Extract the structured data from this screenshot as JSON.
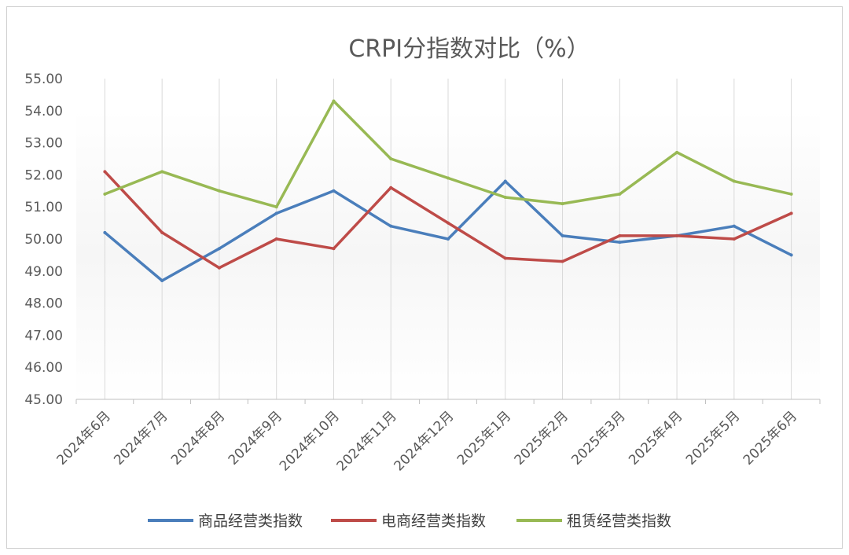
{
  "chart_data": {
    "type": "line",
    "title": "CRPI分指数对比（%）",
    "categories": [
      "2024年6月",
      "2024年7月",
      "2024年8月",
      "2024年9月",
      "2024年10月",
      "2024年11月",
      "2024年12月",
      "2025年1月",
      "2025年2月",
      "2025年3月",
      "2025年4月",
      "2025年5月",
      "2025年6月"
    ],
    "ylim": [
      45,
      55
    ],
    "yticks": [
      "45.00",
      "46.00",
      "47.00",
      "48.00",
      "49.00",
      "50.00",
      "51.00",
      "52.00",
      "53.00",
      "54.00",
      "55.00"
    ],
    "grid": "vertical",
    "legend": "bottom",
    "series": [
      {
        "name": "商品经营类指数",
        "color": "#4a7ebb",
        "values": [
          50.2,
          48.7,
          49.7,
          50.8,
          51.5,
          50.4,
          50.0,
          51.8,
          50.1,
          49.9,
          50.1,
          50.4,
          49.5
        ]
      },
      {
        "name": "电商经营类指数",
        "color": "#be4b48",
        "values": [
          52.1,
          50.2,
          49.1,
          50.0,
          49.7,
          51.6,
          50.5,
          49.4,
          49.3,
          50.1,
          50.1,
          50.0,
          50.8
        ]
      },
      {
        "name": "租赁经营类指数",
        "color": "#98b954",
        "values": [
          51.4,
          52.1,
          51.5,
          51.0,
          54.3,
          52.5,
          51.9,
          51.3,
          51.1,
          51.4,
          52.7,
          51.8,
          51.4
        ]
      }
    ]
  }
}
